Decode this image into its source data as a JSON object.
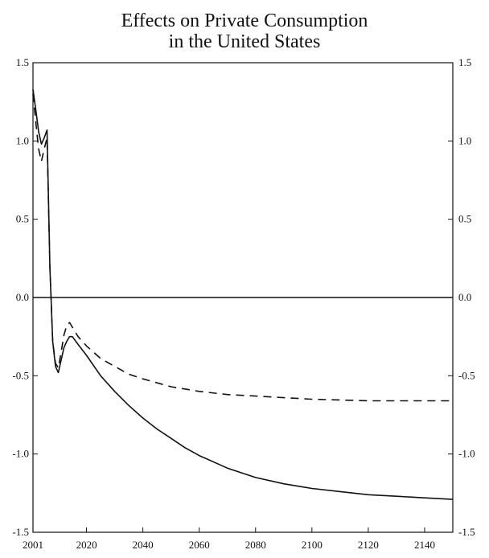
{
  "chart_data": {
    "type": "line",
    "title_lines": [
      "Effects on Private Consumption",
      "in the United States"
    ],
    "xlabel": "",
    "ylabel": "",
    "xlim": [
      2001,
      2150
    ],
    "ylim": [
      -1.5,
      1.5
    ],
    "x_ticks": [
      2001,
      2020,
      2040,
      2060,
      2080,
      2100,
      2120,
      2140
    ],
    "x_tick_labels": [
      "2001",
      "2020",
      "2040",
      "2060",
      "2080",
      "2100",
      "2120",
      "2140"
    ],
    "y_ticks": [
      -1.5,
      -1.0,
      -0.5,
      0.0,
      0.5,
      1.0,
      1.5
    ],
    "y_tick_labels_left": [
      "-1.5",
      "-1.0",
      "-0.5",
      "0.0",
      "0.5",
      "1.0",
      "1.5"
    ],
    "y_tick_labels_right": [
      "-1.5",
      "-1.0",
      "-0.5",
      "0.0",
      "0.5",
      "1.0",
      "1.5"
    ],
    "grid": false,
    "legend": "none",
    "series": [
      {
        "style": "solid",
        "color": "#111111",
        "points": [
          [
            2001,
            1.33
          ],
          [
            2002,
            1.2
          ],
          [
            2003,
            1.06
          ],
          [
            2004,
            0.98
          ],
          [
            2005,
            1.02
          ],
          [
            2006,
            1.07
          ],
          [
            2007,
            0.2
          ],
          [
            2008,
            -0.28
          ],
          [
            2009,
            -0.44
          ],
          [
            2010,
            -0.48
          ],
          [
            2011,
            -0.4
          ],
          [
            2012,
            -0.32
          ],
          [
            2013,
            -0.28
          ],
          [
            2014,
            -0.25
          ],
          [
            2015,
            -0.25
          ],
          [
            2017,
            -0.3
          ],
          [
            2020,
            -0.37
          ],
          [
            2025,
            -0.5
          ],
          [
            2030,
            -0.6
          ],
          [
            2035,
            -0.69
          ],
          [
            2040,
            -0.77
          ],
          [
            2045,
            -0.84
          ],
          [
            2050,
            -0.9
          ],
          [
            2055,
            -0.96
          ],
          [
            2060,
            -1.01
          ],
          [
            2070,
            -1.09
          ],
          [
            2080,
            -1.15
          ],
          [
            2090,
            -1.19
          ],
          [
            2100,
            -1.22
          ],
          [
            2110,
            -1.24
          ],
          [
            2120,
            -1.26
          ],
          [
            2130,
            -1.27
          ],
          [
            2140,
            -1.28
          ],
          [
            2150,
            -1.29
          ]
        ]
      },
      {
        "style": "dashed",
        "color": "#111111",
        "points": [
          [
            2001,
            1.3
          ],
          [
            2002,
            1.12
          ],
          [
            2003,
            0.95
          ],
          [
            2004,
            0.87
          ],
          [
            2005,
            0.95
          ],
          [
            2006,
            1.02
          ],
          [
            2007,
            0.2
          ],
          [
            2008,
            -0.28
          ],
          [
            2009,
            -0.42
          ],
          [
            2010,
            -0.45
          ],
          [
            2011,
            -0.35
          ],
          [
            2012,
            -0.24
          ],
          [
            2013,
            -0.18
          ],
          [
            2014,
            -0.16
          ],
          [
            2015,
            -0.19
          ],
          [
            2017,
            -0.25
          ],
          [
            2020,
            -0.31
          ],
          [
            2025,
            -0.39
          ],
          [
            2030,
            -0.44
          ],
          [
            2035,
            -0.49
          ],
          [
            2040,
            -0.52
          ],
          [
            2050,
            -0.57
          ],
          [
            2060,
            -0.6
          ],
          [
            2070,
            -0.62
          ],
          [
            2080,
            -0.63
          ],
          [
            2090,
            -0.64
          ],
          [
            2100,
            -0.65
          ],
          [
            2120,
            -0.66
          ],
          [
            2140,
            -0.66
          ],
          [
            2150,
            -0.66
          ]
        ]
      },
      {
        "style": "solid",
        "color": "#111111",
        "points": [
          [
            2001,
            0.0
          ],
          [
            2150,
            0.0
          ]
        ]
      }
    ]
  }
}
